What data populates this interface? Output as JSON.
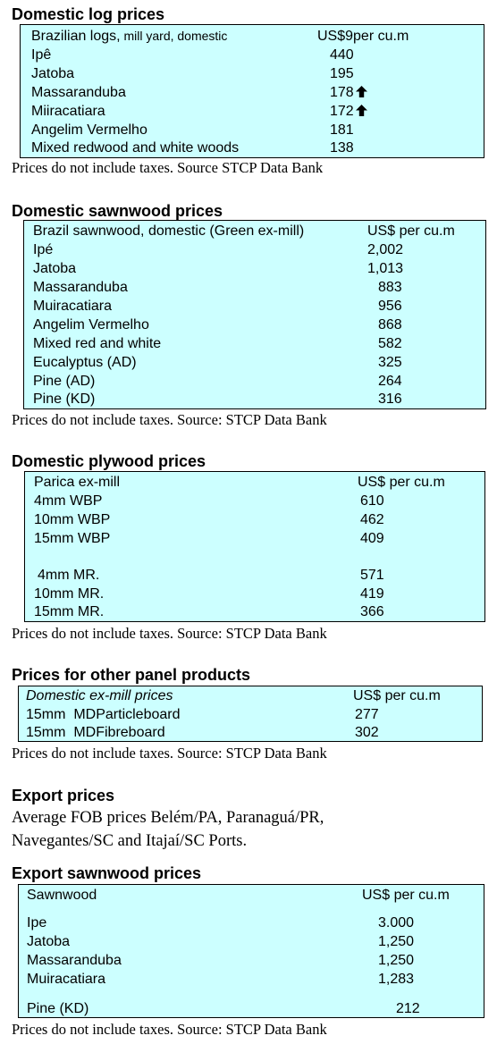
{
  "log": {
    "heading": "Domestic log prices",
    "header_label": "Brazilian logs,",
    "header_sub": " mill yard, domestic",
    "header_value": "US$9per cu.m",
    "rows": [
      {
        "label": "Ipê",
        "value": "440"
      },
      {
        "label": "Jatoba",
        "value": "195"
      },
      {
        "label": "Massaranduba",
        "value": "178"
      },
      {
        "label": "Miiracatiara",
        "value": "172"
      },
      {
        "label": "Angelim Vermelho",
        "value": "181"
      },
      {
        "label": "Mixed redwood and white woods",
        "value": "138"
      }
    ],
    "up_arrow_icon": "up-arrow-icon",
    "note": "Prices do not include taxes. Source STCP Data Bank"
  },
  "sawn": {
    "heading": "Domestic sawnwood prices",
    "header_label": "Brazil sawnwood, domestic (Green ex-mill)",
    "header_value": "US$ per cu.m",
    "rows": [
      {
        "label": "Ipé",
        "value": "2,002"
      },
      {
        "label": "Jatoba",
        "value": "1,013"
      },
      {
        "label": "Massaranduba",
        "value": "883"
      },
      {
        "label": "Muiracatiara",
        "value": "956"
      },
      {
        "label": "Angelim Vermelho",
        "value": "868"
      },
      {
        "label": "Mixed red and white",
        "value": "582"
      },
      {
        "label": "Eucalyptus (AD)",
        "value": "325"
      },
      {
        "label": "Pine (AD)",
        "value": "264"
      },
      {
        "label": "Pine (KD)",
        "value": "316"
      }
    ],
    "note": "Prices do not include taxes. Source: STCP Data Bank"
  },
  "ply": {
    "heading": "Domestic plywood prices",
    "header_label": "Parica ex-mill",
    "header_value": "US$ per cu.m",
    "rows": [
      {
        "label": "4mm WBP",
        "value": "610"
      },
      {
        "label": "10mm WBP",
        "value": "462"
      },
      {
        "label": "15mm WBP",
        "value": "409"
      },
      {
        "label": " 4mm MR.",
        "value": "571"
      },
      {
        "label": "10mm MR.",
        "value": "419"
      },
      {
        "label": "15mm MR.",
        "value": "366"
      }
    ],
    "note": "Prices do not include taxes. Source: STCP Data Bank"
  },
  "panel": {
    "heading": "Prices for other panel products",
    "header_label": "Domestic ex-mill prices",
    "header_value": "US$ per cu.m",
    "rows": [
      {
        "label": "15mm  MDParticleboard",
        "value": "277"
      },
      {
        "label": "15mm  MDFibreboard",
        "value": "302"
      }
    ],
    "note": "Prices do not include taxes. Source: STCP Data Bank"
  },
  "export": {
    "heading": "Export prices",
    "line1": "Average FOB prices Belém/PA, Paranaguá/PR,",
    "line2": "Navegantes/SC and Itajaí/SC Ports."
  },
  "exsawn": {
    "heading": "Export sawnwood prices",
    "header_label": "Sawnwood",
    "header_value": "US$ per cu.m",
    "rows": [
      {
        "label": "Ipe",
        "value": "3.000"
      },
      {
        "label": "Jatoba",
        "value": "1,250"
      },
      {
        "label": "Massaranduba",
        "value": "1,250"
      },
      {
        "label": "Muiracatiara",
        "value": "1,283"
      },
      {
        "label": "Pine (KD)",
        "value": "212"
      }
    ],
    "note": "Prices do not include taxes. Source: STCP Data Bank"
  }
}
